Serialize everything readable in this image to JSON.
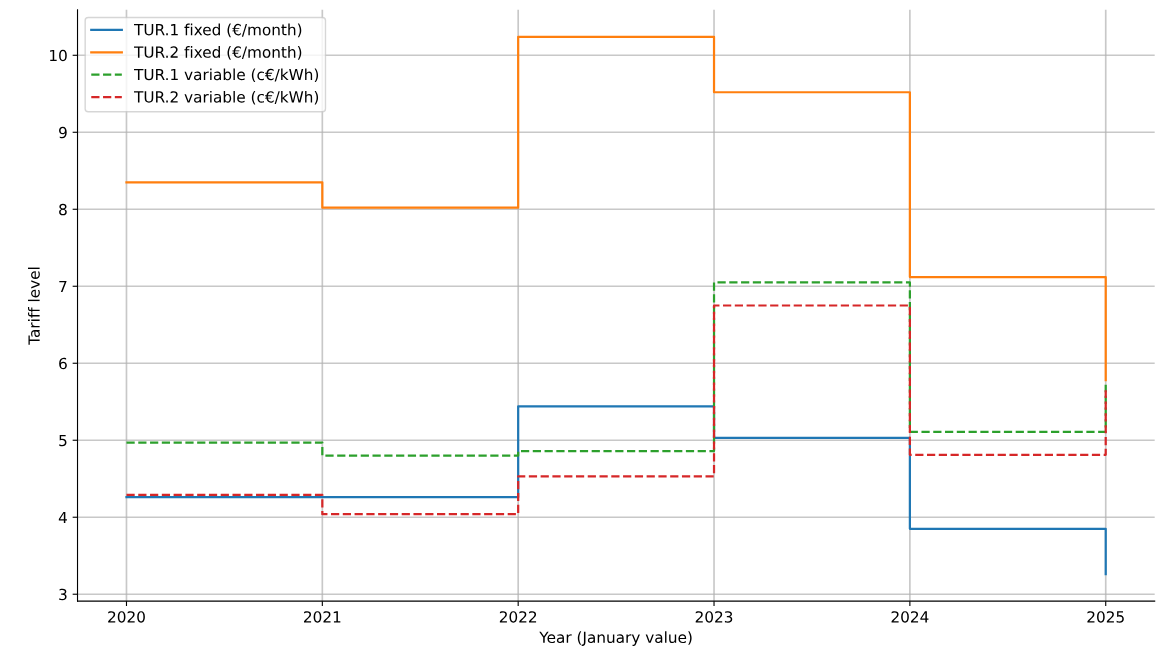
{
  "chart_data": {
    "type": "step",
    "xlabel": "Year (January value)",
    "ylabel": "Tariff level",
    "x": [
      2020,
      2021,
      2022,
      2023,
      2024,
      2025
    ],
    "series": [
      {
        "name": "TUR.1 fixed (€/month)",
        "color": "#1f77b4",
        "line_style": "solid",
        "values": [
          4.26,
          4.26,
          5.44,
          5.03,
          3.85,
          3.26
        ]
      },
      {
        "name": "TUR.2 fixed (€/month)",
        "color": "#ff7f0e",
        "line_style": "solid",
        "values": [
          8.35,
          8.02,
          10.24,
          9.52,
          7.12,
          5.78
        ]
      },
      {
        "name": "TUR.1 variable (c€/kWh)",
        "color": "#2ca02c",
        "line_style": "dashed",
        "values": [
          4.97,
          4.8,
          4.86,
          7.05,
          5.11,
          5.72
        ]
      },
      {
        "name": "TUR.2 variable (c€/kWh)",
        "color": "#d62728",
        "line_style": "dashed",
        "values": [
          4.29,
          4.04,
          4.53,
          6.75,
          4.81,
          5.65
        ]
      }
    ],
    "xlim": [
      2019.75,
      2025.25
    ],
    "xticks": [
      2020,
      2021,
      2022,
      2023,
      2024,
      2025
    ],
    "ylim": [
      2.91,
      10.59
    ],
    "yticks": [
      3,
      4,
      5,
      6,
      7,
      8,
      9,
      10
    ],
    "grid": true,
    "legend": "top left"
  }
}
